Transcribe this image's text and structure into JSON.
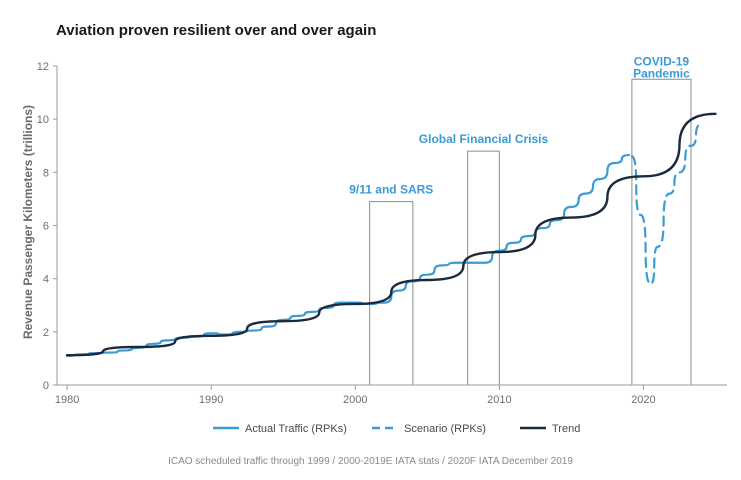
{
  "chart_data": {
    "type": "line",
    "title": "Aviation proven resilient over and over again",
    "xlabel": "",
    "ylabel": "Revenue Passenger Kilometers (trillions)",
    "xlim": [
      1980,
      2025
    ],
    "ylim": [
      0,
      12
    ],
    "x_ticks": [
      "1980",
      "1990",
      "2000",
      "2010",
      "2020"
    ],
    "y_ticks": [
      "0",
      "2",
      "4",
      "6",
      "8",
      "10",
      "12"
    ],
    "grid": false,
    "colors": {
      "actual": "#3a9bd5",
      "scenario": "#3a9bd5",
      "trend": "#1b2a3c",
      "annotation_box": "#8c8c8c"
    },
    "series": [
      {
        "name": "Actual Traffic (RPKs)",
        "style": "solid",
        "x": [
          1980,
          1981,
          1982,
          1983,
          1984,
          1985,
          1986,
          1987,
          1988,
          1989,
          1990,
          1991,
          1992,
          1993,
          1994,
          1995,
          1996,
          1997,
          1998,
          1999,
          2000,
          2001,
          2002,
          2003,
          2004,
          2005,
          2006,
          2007,
          2008,
          2009,
          2010,
          2011,
          2012,
          2013,
          2014,
          2015,
          2016,
          2017,
          2018,
          2019
        ],
        "values": [
          1.1,
          1.15,
          1.2,
          1.22,
          1.3,
          1.4,
          1.55,
          1.68,
          1.78,
          1.82,
          1.95,
          1.9,
          2.0,
          2.05,
          2.2,
          2.45,
          2.6,
          2.75,
          2.9,
          3.1,
          3.1,
          3.05,
          3.1,
          3.55,
          3.9,
          4.15,
          4.5,
          4.6,
          4.6,
          4.6,
          5.05,
          5.35,
          5.6,
          5.9,
          6.2,
          6.7,
          7.2,
          7.75,
          8.35,
          8.65
        ]
      },
      {
        "name": "Scenario (RPKs)",
        "style": "dashed",
        "x": [
          2019.2,
          2019.8,
          2020.5,
          2021.0,
          2021.8,
          2022.5,
          2023.3,
          2024.0
        ],
        "values": [
          8.6,
          6.4,
          3.8,
          5.2,
          7.2,
          8.0,
          9.0,
          9.8
        ]
      },
      {
        "name": "Trend",
        "style": "solid",
        "x": [
          1980,
          1985,
          1990,
          1995,
          2000,
          2005,
          2010,
          2015,
          2020,
          2025
        ],
        "values": [
          1.12,
          1.43,
          1.85,
          2.4,
          3.05,
          3.95,
          5.0,
          6.3,
          7.85,
          10.2
        ]
      }
    ],
    "annotations": [
      {
        "label": "9/11 and SARS",
        "x_range": [
          2001,
          2004
        ],
        "top": 6.9
      },
      {
        "label": "Global Financial Crisis",
        "x_range": [
          2007.8,
          2010
        ],
        "top": 8.8
      },
      {
        "label": "COVID-19",
        "label2": "Pandemic",
        "x_range": [
          2019.2,
          2023.3
        ],
        "top": 11.5
      }
    ],
    "legend": {
      "placement": "bottom",
      "items": [
        "Actual Traffic (RPKs)",
        "Scenario (RPKs)",
        "Trend"
      ]
    },
    "source": "ICAO scheduled traffic through 1999 / 2000-2019E IATA stats / 2020F IATA December 2019"
  }
}
